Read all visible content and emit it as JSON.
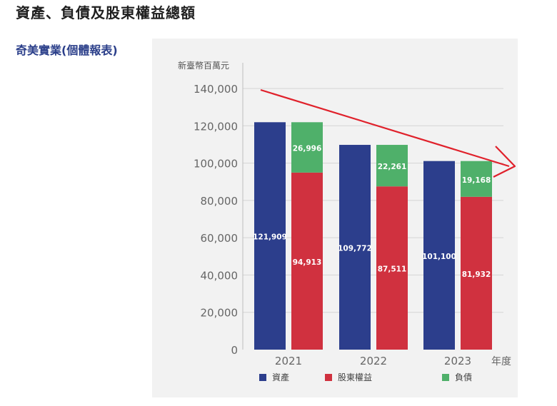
{
  "page": {
    "title": "資產、負債及股東權益總額",
    "subtitle": "奇美實業(個體報表)"
  },
  "colors": {
    "assets": "#2c3e8c",
    "equity": "#d0313f",
    "liabilities": "#4fb06a",
    "trend_arrow": "#e0212b",
    "grid": "#d4d4d4",
    "axis_text": "#666666"
  },
  "chart_data": {
    "type": "bar",
    "stacked_group": "right",
    "unit_label": "新臺幣百萬元",
    "xlabel": "年度",
    "categories": [
      "2021",
      "2022",
      "2023"
    ],
    "ylim": [
      0,
      140000
    ],
    "yticks": [
      "0",
      "20,000",
      "40,000",
      "60,000",
      "80,000",
      "100,000",
      "120,000",
      "140,000"
    ],
    "grid": true,
    "legend_position": "bottom",
    "series": [
      {
        "name": "資產",
        "key": "assets",
        "values": [
          121909,
          109772,
          101100
        ],
        "labels": [
          "121,909",
          "109,772",
          "101,100"
        ]
      },
      {
        "name": "股東權益",
        "key": "equity",
        "values": [
          94913,
          87511,
          81932
        ],
        "labels": [
          "94,913",
          "87,511",
          "81,932"
        ]
      },
      {
        "name": "負債",
        "key": "liabilities",
        "values": [
          26996,
          22261,
          19168
        ],
        "labels": [
          "26,996",
          "22,261",
          "19,168"
        ]
      }
    ],
    "annotations": [
      {
        "type": "trend-arrow",
        "direction": "down-right"
      }
    ]
  }
}
